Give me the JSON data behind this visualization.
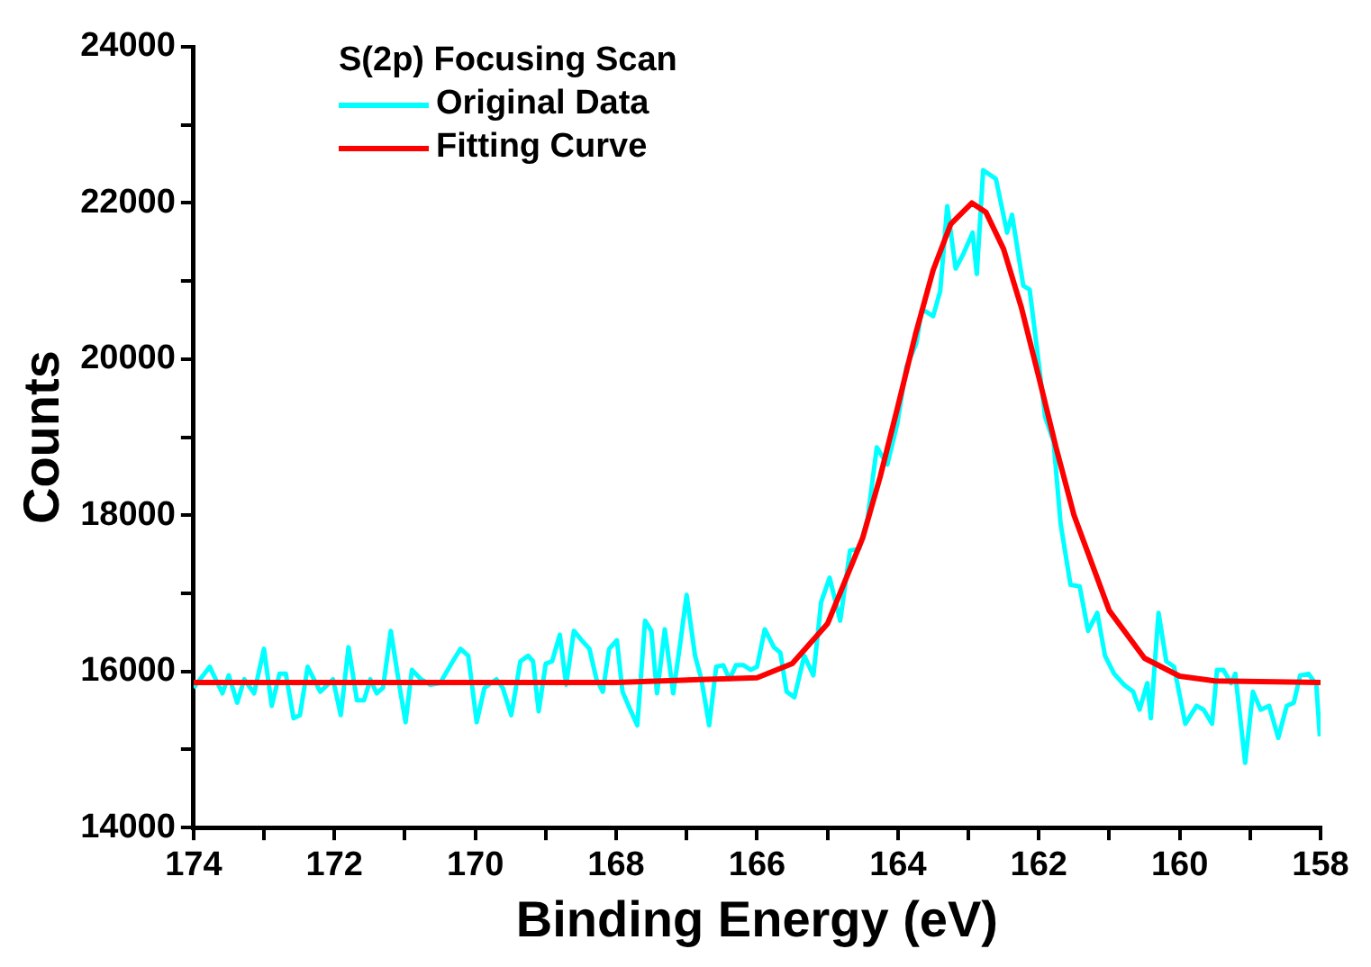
{
  "chart_data": {
    "type": "line",
    "xlabel": "Binding Energy (eV)",
    "ylabel": "Counts",
    "legend_title": "S(2p) Focusing Scan",
    "legend": "top left",
    "grid": false,
    "marker": "none",
    "line_style": "solid",
    "xlim": [
      174,
      158
    ],
    "xticks": [
      174,
      {
        "value": 173,
        "label": null
      },
      172,
      {
        "value": 171,
        "label": null
      },
      170,
      {
        "value": 169,
        "label": null
      },
      168,
      {
        "value": 167,
        "label": null
      },
      166,
      {
        "value": 165,
        "label": null
      },
      164,
      {
        "value": 163,
        "label": null
      },
      162,
      {
        "value": 161,
        "label": null
      },
      160,
      {
        "value": 159,
        "label": null
      },
      158
    ],
    "ylim": [
      14000,
      24000
    ],
    "yticks": [
      14000,
      {
        "value": 15000,
        "label": null
      },
      16000,
      {
        "value": 17000,
        "label": null
      },
      18000,
      {
        "value": 19000,
        "label": null
      },
      20000,
      {
        "value": 21000,
        "label": null
      },
      22000,
      {
        "value": 23000,
        "label": null
      },
      24000
    ],
    "series": [
      {
        "name": "Original Data",
        "color": "#00ffff",
        "x": [
          174.0,
          173.77,
          173.59,
          173.5,
          173.38,
          173.28,
          173.14,
          173.0,
          172.89,
          172.78,
          172.69,
          172.58,
          172.49,
          172.38,
          172.2,
          172.02,
          171.91,
          171.8,
          171.68,
          171.58,
          171.49,
          171.4,
          171.31,
          171.2,
          171.08,
          170.99,
          170.9,
          170.77,
          170.64,
          170.5,
          170.32,
          170.21,
          170.1,
          169.98,
          169.87,
          169.7,
          169.61,
          169.49,
          169.36,
          169.25,
          169.18,
          169.1,
          169.0,
          168.91,
          168.8,
          168.71,
          168.6,
          168.49,
          168.38,
          168.28,
          168.19,
          168.1,
          167.99,
          167.91,
          167.8,
          167.7,
          167.59,
          167.5,
          167.42,
          167.31,
          167.19,
          167.08,
          167.0,
          166.88,
          166.79,
          166.68,
          166.58,
          166.48,
          166.39,
          166.3,
          166.19,
          166.09,
          166.0,
          165.89,
          165.76,
          165.67,
          165.58,
          165.47,
          165.33,
          165.2,
          165.09,
          164.97,
          164.82,
          164.68,
          164.55,
          164.43,
          164.3,
          164.15,
          164.01,
          163.88,
          163.74,
          163.66,
          163.5,
          163.4,
          163.3,
          163.18,
          163.07,
          162.94,
          162.88,
          162.79,
          162.61,
          162.45,
          162.38,
          162.22,
          162.13,
          162.02,
          161.91,
          161.79,
          161.69,
          161.55,
          161.42,
          161.3,
          161.17,
          161.06,
          160.93,
          160.79,
          160.66,
          160.57,
          160.46,
          160.41,
          160.3,
          160.19,
          160.08,
          159.92,
          159.76,
          159.66,
          159.54,
          159.47,
          159.38,
          159.27,
          159.21,
          159.14,
          159.07,
          158.96,
          158.85,
          158.73,
          158.6,
          158.48,
          158.38,
          158.29,
          158.17,
          158.06,
          158.01
        ],
        "values": [
          15790,
          16060,
          15720,
          15950,
          15600,
          15900,
          15720,
          16290,
          15560,
          15970,
          15970,
          15400,
          15440,
          16060,
          15740,
          15900,
          15440,
          16310,
          15630,
          15630,
          15900,
          15720,
          15790,
          16520,
          15830,
          15350,
          16020,
          15900,
          15830,
          15850,
          16130,
          16290,
          16200,
          15350,
          15790,
          15900,
          15790,
          15440,
          16130,
          16200,
          16130,
          15490,
          16100,
          16130,
          16470,
          15830,
          16520,
          16400,
          16290,
          15900,
          15740,
          16290,
          16400,
          15740,
          15510,
          15310,
          16650,
          16520,
          15720,
          16540,
          15720,
          16430,
          16980,
          16200,
          15900,
          15310,
          16060,
          16080,
          15900,
          16080,
          16080,
          16020,
          16060,
          16540,
          16310,
          16240,
          15740,
          15670,
          16200,
          15950,
          16890,
          17200,
          16650,
          17550,
          17570,
          17960,
          18870,
          18650,
          19170,
          19900,
          20200,
          20640,
          20550,
          20870,
          21960,
          21160,
          21350,
          21620,
          21090,
          22420,
          22310,
          21620,
          21850,
          20940,
          20890,
          20090,
          19260,
          18940,
          17890,
          17110,
          17090,
          16520,
          16750,
          16200,
          15970,
          15830,
          15740,
          15510,
          15850,
          15400,
          16750,
          16130,
          16060,
          15330,
          15560,
          15510,
          15330,
          16020,
          16020,
          15850,
          15970,
          15400,
          14830,
          15740,
          15510,
          15560,
          15150,
          15560,
          15600,
          15950,
          15970,
          15830,
          15170
        ]
      },
      {
        "name": "Fitting Curve",
        "color": "#ff0000",
        "x": [
          174,
          168,
          166,
          165.5,
          165,
          164.5,
          164.25,
          164,
          163.75,
          163.5,
          163.25,
          162.95,
          162.75,
          162.5,
          162.25,
          162,
          161.75,
          161.5,
          161,
          160.5,
          160,
          159.5,
          158
        ],
        "values": [
          15860,
          15860,
          15920,
          16100,
          16610,
          17710,
          18500,
          19400,
          20320,
          21140,
          21730,
          22000,
          21880,
          21410,
          20670,
          19770,
          18850,
          18000,
          16780,
          16170,
          15940,
          15880,
          15860
        ]
      }
    ]
  }
}
